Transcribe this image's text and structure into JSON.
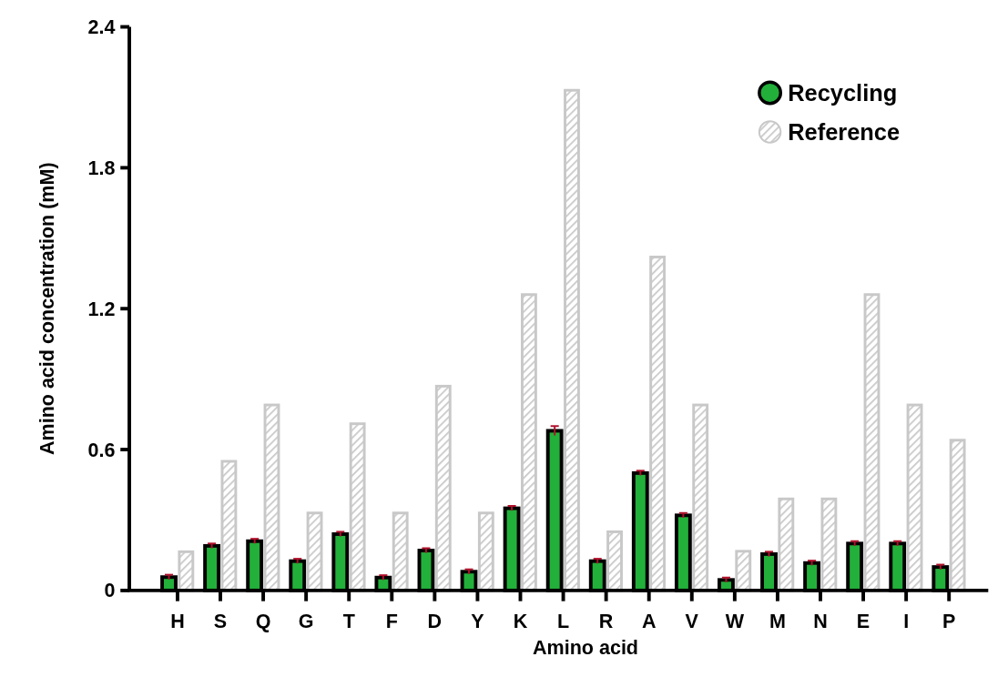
{
  "chart_data": {
    "type": "bar",
    "xlabel": "Amino acid",
    "ylabel": "Amino acid concentration (mM)",
    "categories": [
      "H",
      "S",
      "Q",
      "G",
      "T",
      "F",
      "D",
      "Y",
      "K",
      "L",
      "R",
      "A",
      "V",
      "W",
      "M",
      "N",
      "E",
      "I",
      "P"
    ],
    "series": [
      {
        "name": "Recycling",
        "color": "#22b03a",
        "values": [
          0.057,
          0.19,
          0.21,
          0.125,
          0.24,
          0.055,
          0.17,
          0.08,
          0.35,
          0.68,
          0.125,
          0.5,
          0.32,
          0.045,
          0.155,
          0.117,
          0.2,
          0.2,
          0.1
        ],
        "errors": [
          0.01,
          0.01,
          0.01,
          0.01,
          0.01,
          0.01,
          0.01,
          0.01,
          0.01,
          0.02,
          0.01,
          0.01,
          0.01,
          0.01,
          0.01,
          0.01,
          0.01,
          0.01,
          0.01
        ]
      },
      {
        "name": "Reference",
        "color": "#c8c8c8",
        "values": [
          0.165,
          0.55,
          0.79,
          0.33,
          0.71,
          0.33,
          0.87,
          0.33,
          1.26,
          2.13,
          0.25,
          1.42,
          0.79,
          0.167,
          0.39,
          0.39,
          1.26,
          0.79,
          0.64
        ]
      }
    ],
    "ylim": [
      0,
      2.4
    ],
    "yticks": [
      0,
      0.6,
      1.2,
      1.8,
      2.4
    ],
    "legend": "top right"
  }
}
